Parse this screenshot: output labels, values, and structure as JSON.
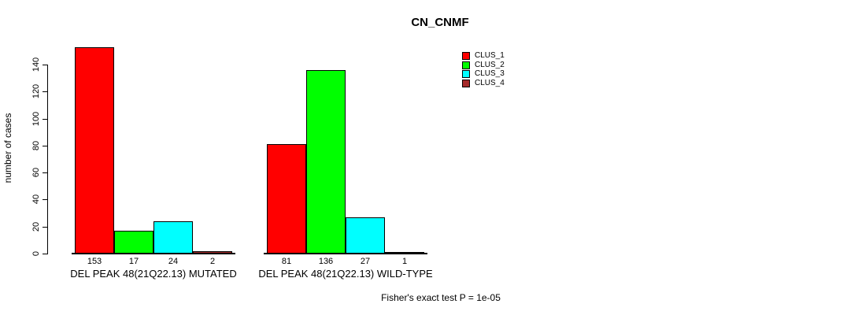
{
  "chart_data": {
    "type": "bar",
    "title": "CN_CNMF",
    "ylabel": "number of cases",
    "xlabel": "",
    "ylim": [
      0,
      140
    ],
    "yticks": [
      0,
      20,
      40,
      60,
      80,
      100,
      120,
      140
    ],
    "grid": false,
    "legend_position": "top-right",
    "categories": [
      "DEL PEAK 48(21Q22.13) MUTATED",
      "DEL PEAK 48(21Q22.13) WILD-TYPE"
    ],
    "series": [
      {
        "name": "CLUS_1",
        "color": "#FF0000",
        "values": [
          153,
          81
        ]
      },
      {
        "name": "CLUS_2",
        "color": "#00FF00",
        "values": [
          17,
          136
        ]
      },
      {
        "name": "CLUS_3",
        "color": "#00FFFF",
        "values": [
          24,
          27
        ]
      },
      {
        "name": "CLUS_4",
        "color": "#A52A2A",
        "values": [
          2,
          1
        ]
      }
    ],
    "bar_value_labels": [
      [
        153,
        17,
        24,
        2
      ],
      [
        81,
        136,
        27,
        1
      ]
    ],
    "annotation": "Fisher's exact test P = 1e-05"
  }
}
